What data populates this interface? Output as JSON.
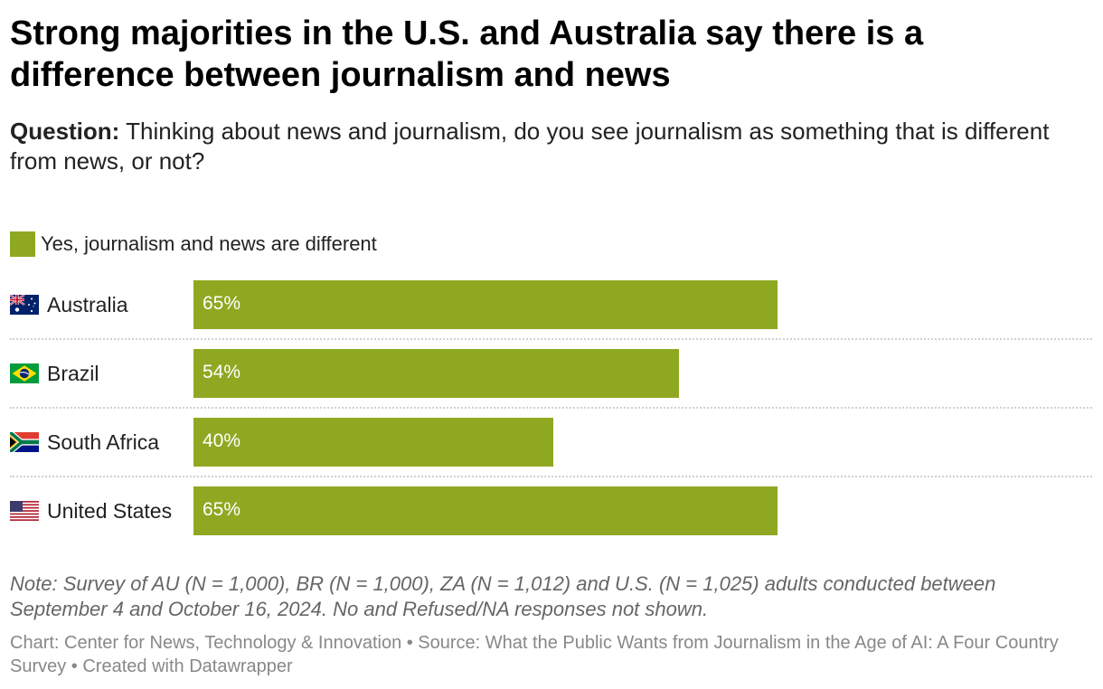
{
  "header": {
    "title": "Strong majorities in the U.S. and Australia say there is a difference between journalism and news",
    "question_label": "Question:",
    "question_text": "Thinking about news and journalism, do you see journalism as something that is different from news, or not?"
  },
  "legend": {
    "label": "Yes, journalism and news are different",
    "color": "#8fa822"
  },
  "chart_data": {
    "type": "bar",
    "orientation": "horizontal",
    "title": "Strong majorities in the U.S. and Australia say there is a difference between journalism and news",
    "xlabel": "",
    "ylabel": "",
    "xlim": [
      0,
      100
    ],
    "unit": "%",
    "categories": [
      "Australia",
      "Brazil",
      "South Africa",
      "United States"
    ],
    "series": [
      {
        "name": "Yes, journalism and news are different",
        "values": [
          65,
          54,
          40,
          65
        ],
        "labels": [
          "65%",
          "54%",
          "40%",
          "65%"
        ],
        "color": "#8fa822"
      }
    ]
  },
  "footer": {
    "note": "Note: Survey of AU (N = 1,000), BR (N = 1,000), ZA (N = 1,012) and U.S. (N = 1,025) adults conducted between September 4 and October 16, 2024. No and Refused/NA responses not shown.",
    "credits": "Chart: Center for News, Technology & Innovation • Source: What the Public Wants from Journalism in the Age of AI: A Four Country Survey • Created with Datawrapper"
  }
}
